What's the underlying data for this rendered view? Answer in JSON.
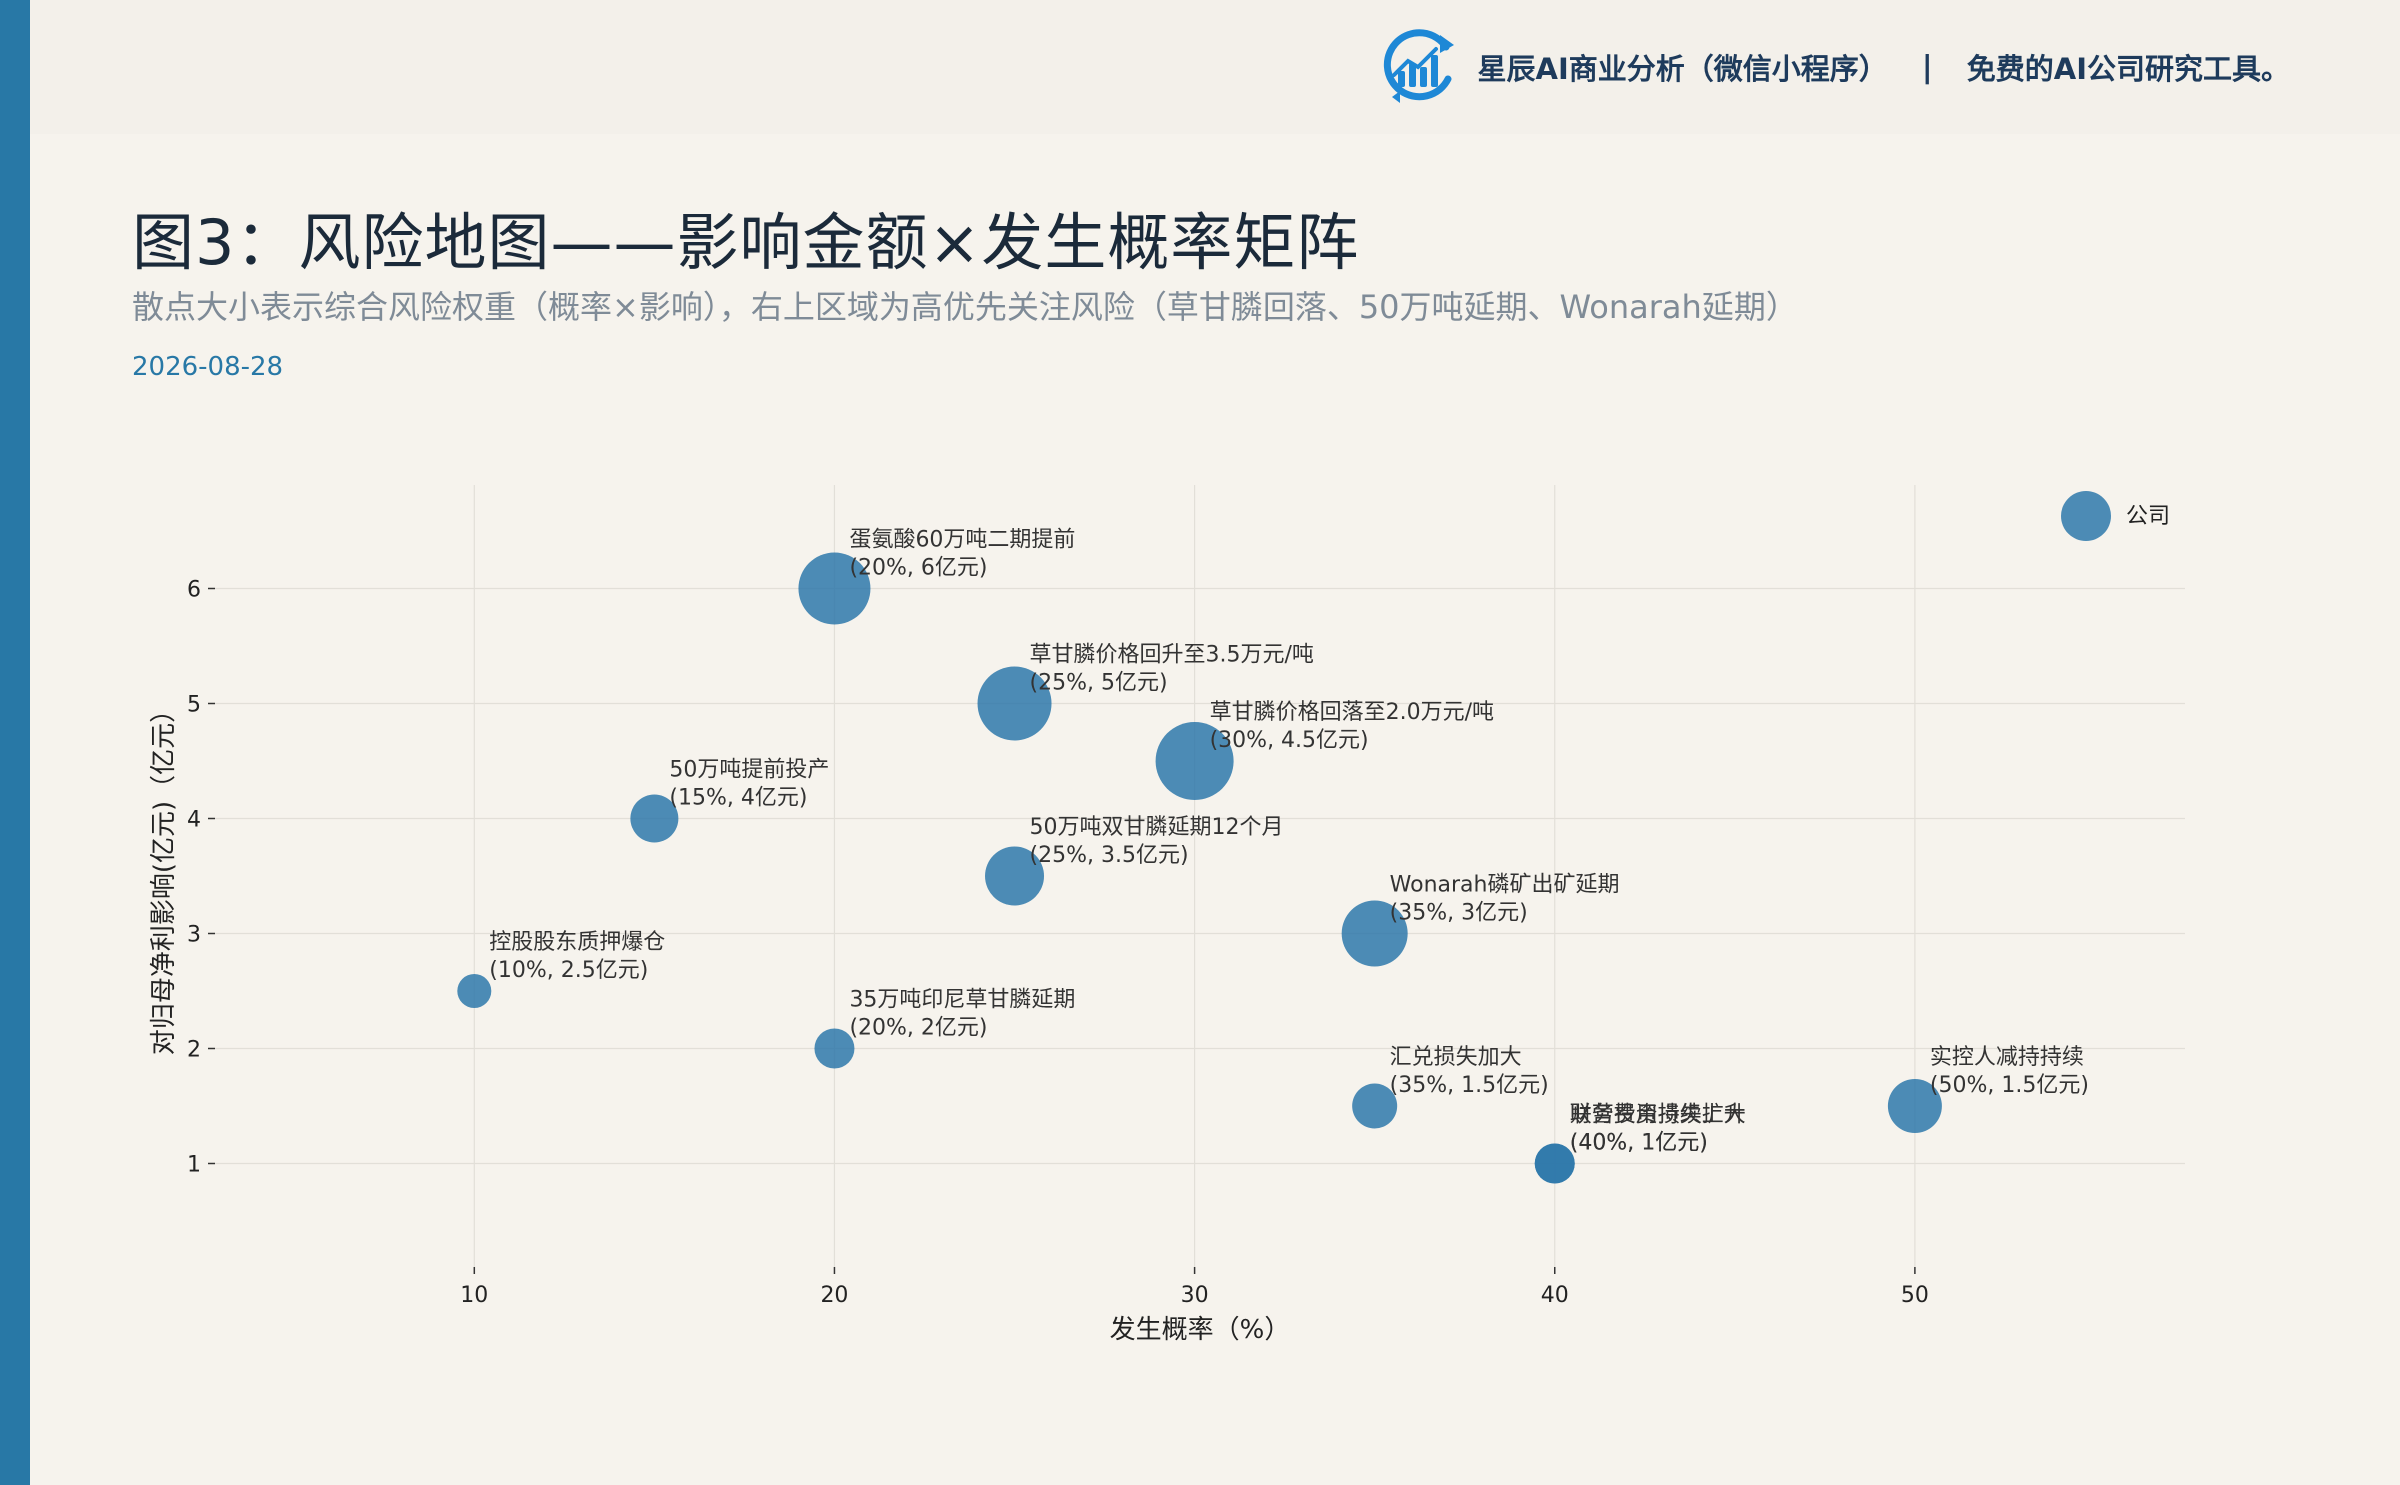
{
  "header": {
    "brand_name": "星辰AI商业分析（微信小程序）",
    "separator": "|",
    "brand_tagline": "免费的AI公司研究工具。",
    "logo_icon": "bar-chart-refresh-icon"
  },
  "title": "图3：风险地图——影响金额×发生概率矩阵",
  "subtitle": "散点大小表示综合风险权重（概率×影响），右上区域为高优先关注风险（草甘膦回落、50万吨延期、Wonarah延期）",
  "date": "2026-08-28",
  "colors": {
    "accent": "#2878a6",
    "point": "#2e78aa",
    "title": "#1b2a3a",
    "subtitle": "#7f8b97",
    "background": "#f6f3ed"
  },
  "chart_data": {
    "type": "scatter",
    "xlabel": "发生概率（%）",
    "ylabel": "对归母净利影响(亿元)（亿元）",
    "x_ticks": [
      10,
      20,
      30,
      40,
      50
    ],
    "y_ticks": [
      1,
      2,
      3,
      4,
      5,
      6
    ],
    "xlim": [
      2.8,
      57.5
    ],
    "ylim": [
      0.1,
      6.9
    ],
    "grid": true,
    "points": [
      {
        "name": "控股股东质押爆仓",
        "label": "(10%, 2.5亿元)",
        "x": 10,
        "y": 2.5,
        "weight": 0.25
      },
      {
        "name": "50万吨提前投产",
        "label": "(15%, 4亿元)",
        "x": 15,
        "y": 4,
        "weight": 0.6
      },
      {
        "name": "蛋氨酸60万吨二期提前",
        "label": "(20%, 6亿元)",
        "x": 20,
        "y": 6,
        "weight": 1.2
      },
      {
        "name": "35万吨印尼草甘膦延期",
        "label": "(20%, 2亿元)",
        "x": 20,
        "y": 2,
        "weight": 0.4
      },
      {
        "name": "草甘膦价格回升至3.5万元/吨",
        "label": "(25%, 5亿元)",
        "x": 25,
        "y": 5,
        "weight": 1.25
      },
      {
        "name": "50万吨双甘膦延期12个月",
        "label": "(25%, 3.5亿元)",
        "x": 25,
        "y": 3.5,
        "weight": 0.875
      },
      {
        "name": "草甘膦价格回落至2.0万元/吨",
        "label": "(30%, 4.5亿元)",
        "x": 30,
        "y": 4.5,
        "weight": 1.35
      },
      {
        "name": "Wonarah磷矿出矿延期",
        "label": "(35%, 3亿元)",
        "x": 35,
        "y": 3,
        "weight": 1.05
      },
      {
        "name": "汇兑损失加大",
        "label": "(35%, 1.5亿元)",
        "x": 35,
        "y": 1.5,
        "weight": 0.525
      },
      {
        "name": "财务费用持续上升",
        "label": "(40%, 1亿元)",
        "x": 40,
        "y": 1,
        "weight": 0.4
      },
      {
        "name": "联营投资损失扩大",
        "label": "(40%, 1亿元)",
        "x": 40,
        "y": 1,
        "weight": 0.4
      },
      {
        "name": "实控人减持持续",
        "label": "(50%, 1.5亿元)",
        "x": 50,
        "y": 1.5,
        "weight": 0.75
      }
    ],
    "legend": {
      "label": "公司",
      "placement": "top-right"
    }
  }
}
